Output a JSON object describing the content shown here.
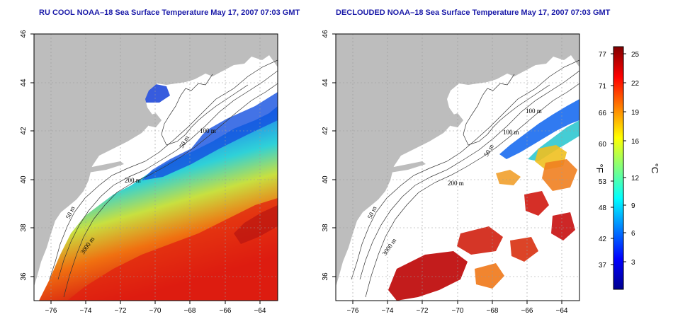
{
  "left_panel": {
    "title": "RU COOL NOAA–18 Sea Surface Temperature May 17, 2007 07:03 GMT",
    "contour_labels": [
      "100 m",
      "50 m",
      "200 m",
      "50 m",
      "3000 m"
    ]
  },
  "right_panel": {
    "title": "DECLOUDED NOAA–18 Sea Surface Temperature May 17, 2007 07:03 GMT",
    "contour_labels": [
      "100 m",
      "100 m",
      "50 m",
      "200 m",
      "50 m",
      "3000 m"
    ]
  },
  "axes": {
    "lon_ticks": [
      "−76",
      "−74",
      "−72",
      "−70",
      "−68",
      "−66",
      "−64"
    ],
    "lat_ticks": [
      "46",
      "44",
      "42",
      "40",
      "38",
      "36"
    ],
    "lon_range": [
      -77,
      -63
    ],
    "lat_range": [
      35,
      46
    ]
  },
  "colorbar": {
    "fahrenheit_label": "°F",
    "celsius_label": "°C",
    "fahrenheit_ticks": [
      "77",
      "71",
      "66",
      "60",
      "53",
      "48",
      "42",
      "37"
    ],
    "celsius_ticks": [
      "25",
      "22",
      "19",
      "16",
      "12",
      "9",
      "6",
      "3"
    ]
  },
  "colors": {
    "land": "#bdbdbd",
    "title": "#1a1aa8",
    "grid": "#9a9a9a"
  }
}
